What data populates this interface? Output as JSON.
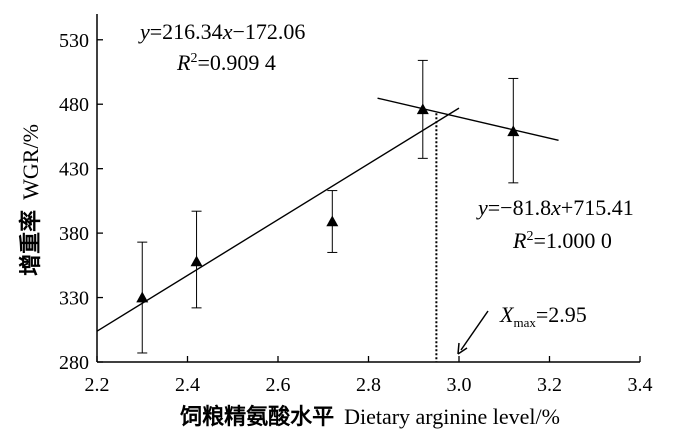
{
  "chart_data": {
    "type": "scatter",
    "xlabel_cn": "饲粮精氨酸水平",
    "xlabel_en": "Dietary arginine level/%",
    "ylabel_cn": "增重率",
    "ylabel_en": "WGR/%",
    "xlim": [
      2.2,
      3.4
    ],
    "ylim": [
      280,
      550
    ],
    "xticks": [
      2.2,
      2.4,
      2.6,
      2.8,
      3.0,
      3.2,
      3.4
    ],
    "xtick_labels": [
      "2.2",
      "2.4",
      "2.6",
      "2.8",
      "3.0",
      "3.2",
      "3.4"
    ],
    "yticks": [
      280,
      330,
      380,
      430,
      480,
      530
    ],
    "ytick_labels": [
      "280",
      "330",
      "380",
      "430",
      "480",
      "530"
    ],
    "grid": false,
    "points": [
      {
        "x": 2.3,
        "y": 330,
        "err_low": 287,
        "err_high": 373
      },
      {
        "x": 2.42,
        "y": 358,
        "err_low": 322,
        "err_high": 397
      },
      {
        "x": 2.72,
        "y": 389,
        "err_low": 365,
        "err_high": 413
      },
      {
        "x": 2.92,
        "y": 476,
        "err_low": 438,
        "err_high": 514
      },
      {
        "x": 3.12,
        "y": 459,
        "err_low": 419,
        "err_high": 500
      }
    ],
    "fit_lines": [
      {
        "x_start": 2.2,
        "x_end": 3.0,
        "y_start": 303.9,
        "y_end": 476.96
      },
      {
        "x_start": 2.82,
        "x_end": 3.22,
        "y_start": 484.7,
        "y_end": 452.0
      }
    ],
    "eq1": {
      "y_label": "y",
      "eq_rest": "=216.34",
      "x_label": "x",
      "eq_tail": "−172.06",
      "r_label": "R",
      "r_sup": "2",
      "r_value": "=0.909 4"
    },
    "eq2": {
      "y_label": "y",
      "eq_rest": "=−81.8",
      "x_label": "x",
      "eq_tail": "+715.41",
      "r_label": "R",
      "r_sup": "2",
      "r_value": "=1.000 0"
    },
    "xmax_annotation": {
      "x_value": 2.95,
      "label": "X",
      "sub": "max",
      "value_text": "=2.95"
    }
  }
}
